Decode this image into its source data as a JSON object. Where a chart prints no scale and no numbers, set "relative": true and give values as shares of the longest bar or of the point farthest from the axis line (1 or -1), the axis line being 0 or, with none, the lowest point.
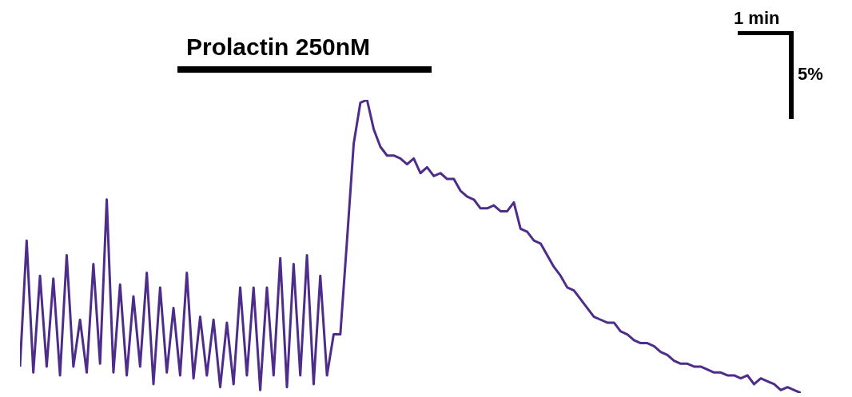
{
  "chart_data": {
    "type": "line",
    "relative": true,
    "categories": [
      null,
      null,
      null,
      null,
      null,
      null,
      null,
      null,
      null,
      null,
      null,
      null,
      null,
      null,
      null,
      null,
      null,
      null,
      null,
      null,
      null,
      null,
      null,
      null,
      null,
      null,
      null,
      null,
      null,
      null,
      null,
      null,
      null,
      null,
      null,
      null,
      null,
      null,
      null,
      null,
      null,
      null,
      null,
      null,
      null,
      null,
      null,
      null,
      null,
      null,
      null,
      null,
      null,
      null,
      null,
      null,
      null,
      null,
      null,
      null,
      null,
      null,
      null,
      null,
      null,
      null,
      null,
      null,
      null,
      null,
      null,
      null,
      null,
      null,
      null,
      null,
      null,
      null,
      null,
      null,
      null,
      null,
      null,
      null,
      null,
      null,
      null,
      null,
      null,
      null,
      null,
      null,
      null,
      null,
      null,
      null,
      null,
      null,
      null,
      null,
      null,
      null,
      null,
      null,
      null,
      null,
      null,
      null,
      null,
      null,
      null,
      null,
      null,
      null,
      null,
      null,
      null,
      null
    ],
    "series": [
      {
        "color": "#4e2d8a",
        "values": [
          0.09,
          0.52,
          0.07,
          0.4,
          0.09,
          0.39,
          0.06,
          0.47,
          0.09,
          0.25,
          0.07,
          0.44,
          0.1,
          0.66,
          0.07,
          0.37,
          0.06,
          0.33,
          0.09,
          0.41,
          0.03,
          0.36,
          0.07,
          0.29,
          0.06,
          0.41,
          0.05,
          0.26,
          0.06,
          0.25,
          0.02,
          0.24,
          0.03,
          0.36,
          0.06,
          0.36,
          0.01,
          0.36,
          0.06,
          0.46,
          0.02,
          0.44,
          0.06,
          0.47,
          0.03,
          0.4,
          0.06,
          0.2,
          0.2,
          0.52,
          0.85,
          0.99,
          1,
          0.9,
          0.84,
          0.81,
          0.81,
          0.8,
          0.78,
          0.8,
          0.75,
          0.77,
          0.74,
          0.75,
          0.73,
          0.73,
          0.69,
          0.67,
          0.66,
          0.63,
          0.63,
          0.64,
          0.62,
          0.62,
          0.65,
          0.56,
          0.55,
          0.52,
          0.51,
          0.47,
          0.43,
          0.4,
          0.36,
          0.35,
          0.32,
          0.29,
          0.26,
          0.25,
          0.24,
          0.24,
          0.21,
          0.2,
          0.18,
          0.17,
          0.17,
          0.16,
          0.14,
          0.13,
          0.11,
          0.1,
          0.1,
          0.09,
          0.09,
          0.08,
          0.07,
          0.07,
          0.06,
          0.06,
          0.05,
          0.06,
          0.03,
          0.05,
          0.04,
          0.03,
          0.01,
          0.02,
          0.01,
          0
        ]
      }
    ],
    "marker": "none",
    "line_style": "solid",
    "annotations": [
      "Prolactin 250nM",
      "1 min",
      "5%"
    ]
  }
}
